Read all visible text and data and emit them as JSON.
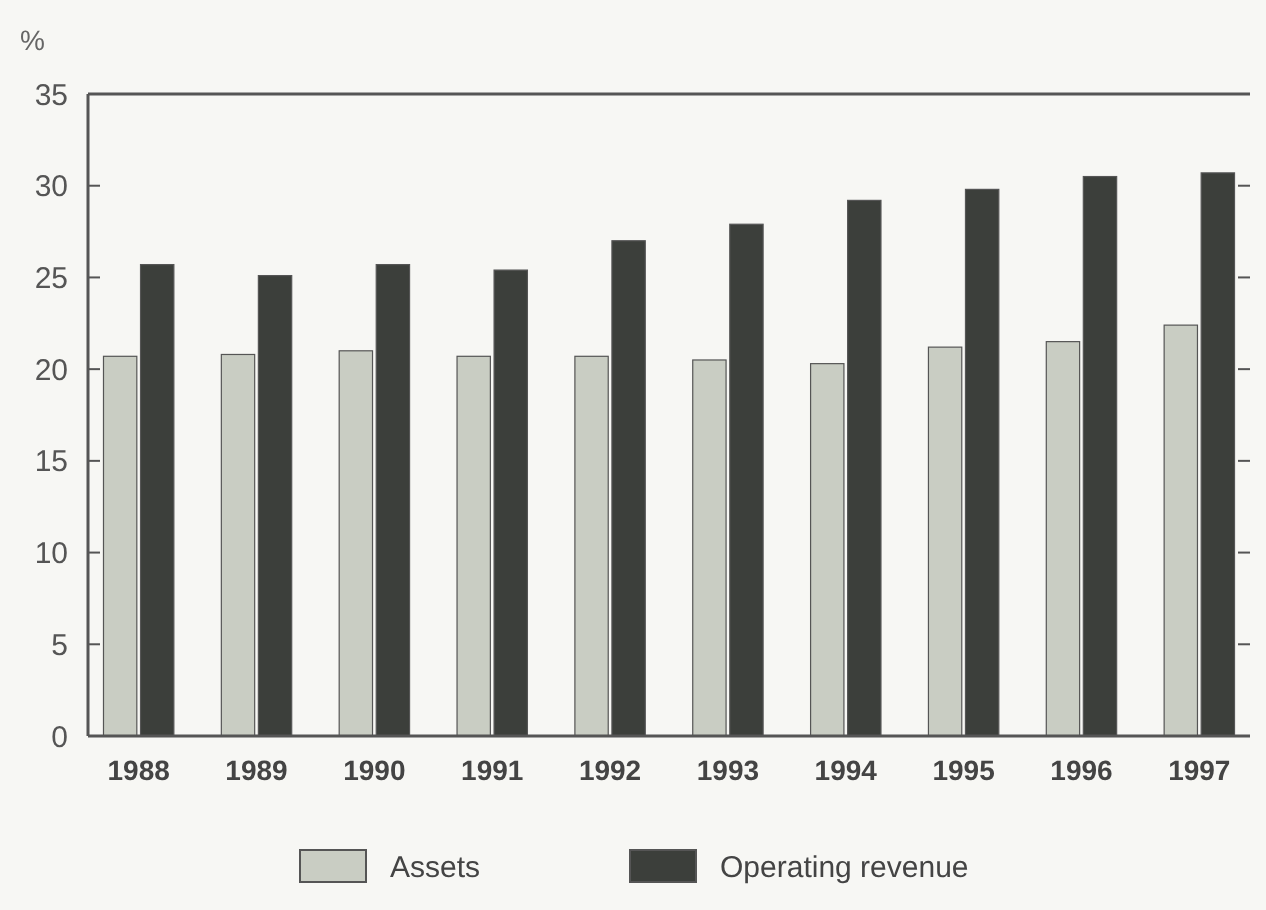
{
  "chart_data": {
    "type": "bar",
    "ylabel": "%",
    "categories": [
      "1988",
      "1989",
      "1990",
      "1991",
      "1992",
      "1993",
      "1994",
      "1995",
      "1996",
      "1997"
    ],
    "series": [
      {
        "name": "Assets",
        "color": "#c9cdc3",
        "values": [
          20.7,
          20.8,
          21.0,
          20.7,
          20.7,
          20.5,
          20.3,
          21.2,
          21.5,
          22.4
        ]
      },
      {
        "name": "Operating revenue",
        "color": "#3c3f3b",
        "values": [
          25.7,
          25.1,
          25.7,
          25.4,
          27.0,
          27.9,
          29.2,
          29.8,
          30.5,
          30.7
        ]
      }
    ],
    "ylim": [
      0,
      35
    ],
    "yticks": [
      0,
      5,
      10,
      15,
      20,
      25,
      30,
      35
    ],
    "grid": false,
    "legend": "bottom"
  }
}
